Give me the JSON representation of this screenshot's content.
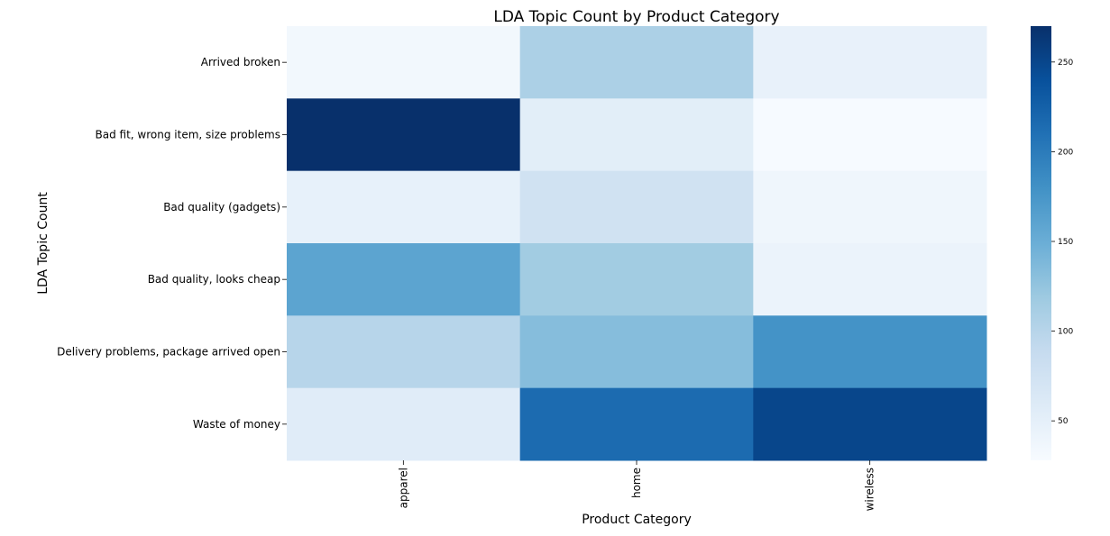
{
  "chart_data": {
    "type": "heatmap",
    "title": "LDA Topic Count by Product Category",
    "xlabel": "Product Category",
    "ylabel": "LDA Topic Count",
    "x_categories": [
      "apparel",
      "home",
      "wireless"
    ],
    "y_categories": [
      "Arrived broken",
      "Bad fit, wrong item, size problems",
      "Bad quality (gadgets)",
      "Bad quality, looks cheap",
      "Delivery problems, package arrived open",
      "Waste of money"
    ],
    "values": [
      [
        34,
        108,
        46
      ],
      [
        270,
        53,
        29
      ],
      [
        47,
        76,
        38
      ],
      [
        160,
        116,
        43
      ],
      [
        100,
        133,
        178
      ],
      [
        56,
        215,
        250
      ]
    ],
    "colormap": "Blues",
    "vmin": 28,
    "vmax": 270,
    "colorbar_ticks": [
      50,
      100,
      150,
      200,
      250
    ],
    "grid": false,
    "legend": "colorbar-right"
  }
}
